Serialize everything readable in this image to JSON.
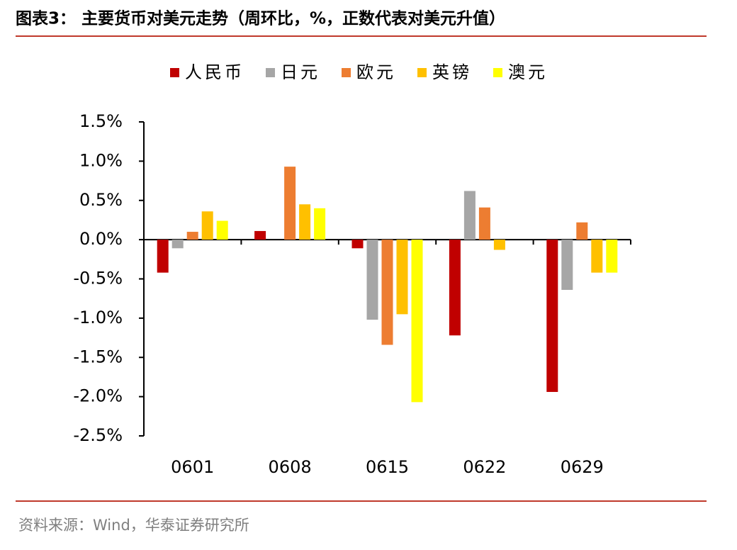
{
  "chart_data": {
    "type": "bar",
    "title": "图表3： 主要货币对美元走势（周环比，%，正数代表对美元升值）",
    "source": "资料来源：Wind，华泰证券研究所",
    "categories": [
      "0601",
      "0608",
      "0615",
      "0622",
      "0629"
    ],
    "series": [
      {
        "name": "人民币",
        "color": "#c00000",
        "values": [
          -0.42,
          0.11,
          -0.11,
          -1.22,
          -1.94
        ]
      },
      {
        "name": "日元",
        "color": "#a6a6a6",
        "values": [
          -0.11,
          0.0,
          -1.02,
          0.62,
          -0.64
        ]
      },
      {
        "name": "欧元",
        "color": "#ed7d31",
        "values": [
          0.1,
          0.93,
          -1.34,
          0.41,
          0.22
        ]
      },
      {
        "name": "英镑",
        "color": "#ffc000",
        "values": [
          0.36,
          0.45,
          -0.95,
          -0.13,
          -0.42
        ]
      },
      {
        "name": "澳元",
        "color": "#ffff00",
        "values": [
          0.24,
          0.4,
          -2.07,
          0.0,
          -0.42
        ]
      }
    ],
    "ylim": [
      -2.5,
      1.5
    ],
    "yticks": [
      {
        "value": 1.5,
        "label": "1.5%"
      },
      {
        "value": 1.0,
        "label": "1.0%"
      },
      {
        "value": 0.5,
        "label": "0.5%"
      },
      {
        "value": 0.0,
        "label": "0.0%"
      },
      {
        "value": -0.5,
        "label": "-0.5%"
      },
      {
        "value": -1.0,
        "label": "-1.0%"
      },
      {
        "value": -1.5,
        "label": "-1.5%"
      },
      {
        "value": -2.0,
        "label": "-2.0%"
      },
      {
        "value": -2.5,
        "label": "-2.5%"
      }
    ],
    "grid": false
  }
}
